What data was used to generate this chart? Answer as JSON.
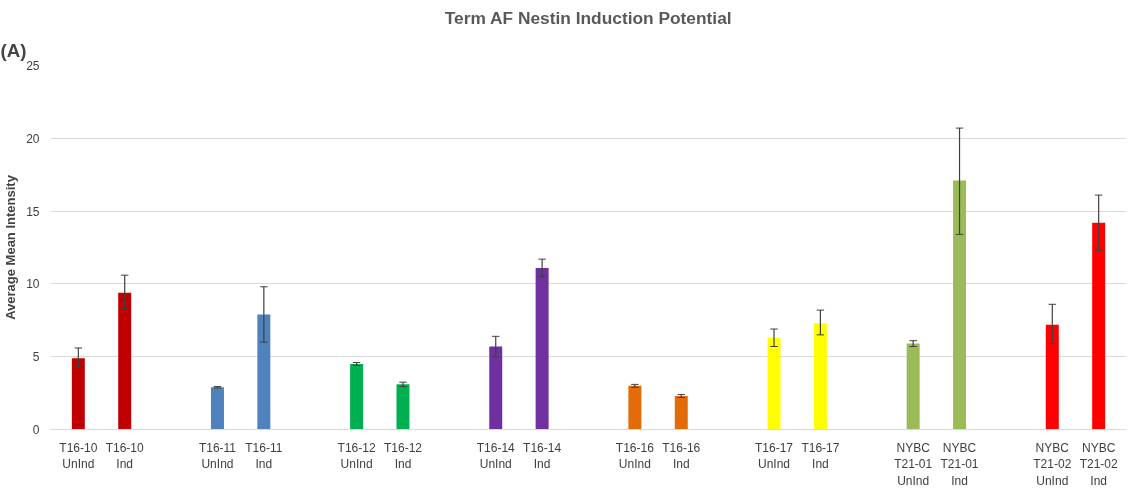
{
  "chart_data": {
    "type": "bar",
    "title": "Term AF Nestin Induction Potential",
    "ylabel": "Average Mean Intensity",
    "annotations": [
      "(A)"
    ],
    "categories": [
      "T16-10\nUnInd",
      "T16-10\nInd",
      null,
      "T16-11\nUnInd",
      "T16-11\nInd",
      null,
      "T16-12\nUnInd",
      "T16-12\nInd",
      null,
      "T16-14\nUnInd",
      "T16-14\nInd",
      null,
      "T16-16\nUnInd",
      "T16-16\nInd",
      null,
      "T16-17\nUnInd",
      "T16-17\nInd",
      null,
      "NYBC\nT21-01\nUnInd",
      "NYBC\nT21-01\nInd",
      null,
      "NYBC\nT21-02\nUnInd",
      "NYBC\nT21-02\nInd"
    ],
    "values": [
      4.9,
      9.4,
      null,
      2.9,
      7.9,
      null,
      4.5,
      3.1,
      null,
      5.7,
      11.1,
      null,
      3.0,
      2.3,
      null,
      6.3,
      7.3,
      null,
      5.9,
      17.1,
      null,
      7.2,
      14.2
    ],
    "errors": [
      [
        4.3,
        5.6
      ],
      [
        8.3,
        10.6
      ],
      null,
      [
        2.85,
        2.95
      ],
      [
        6.0,
        9.8
      ],
      null,
      [
        4.4,
        4.6
      ],
      [
        2.95,
        3.25
      ],
      null,
      [
        5.0,
        6.4
      ],
      [
        10.5,
        11.7
      ],
      null,
      [
        2.9,
        3.1
      ],
      [
        2.2,
        2.4
      ],
      null,
      [
        5.7,
        6.9
      ],
      [
        6.5,
        8.2
      ],
      null,
      [
        5.7,
        6.1
      ],
      [
        13.4,
        20.7
      ],
      null,
      [
        5.9,
        8.6
      ],
      [
        12.3,
        16.1
      ]
    ],
    "colors": [
      "#c00000",
      "#c00000",
      null,
      "#4f81bd",
      "#4f81bd",
      null,
      "#00b050",
      "#00b050",
      null,
      "#7030a0",
      "#7030a0",
      null,
      "#e36c09",
      "#e36c09",
      null,
      "#ffff00",
      "#ffff00",
      null,
      "#9bbb59",
      "#9bbb59",
      null,
      "#ff0000",
      "#ff0000"
    ],
    "ylim": [
      0,
      25
    ],
    "yticks": [
      0,
      5,
      10,
      15,
      20,
      25
    ],
    "grid": "y"
  }
}
